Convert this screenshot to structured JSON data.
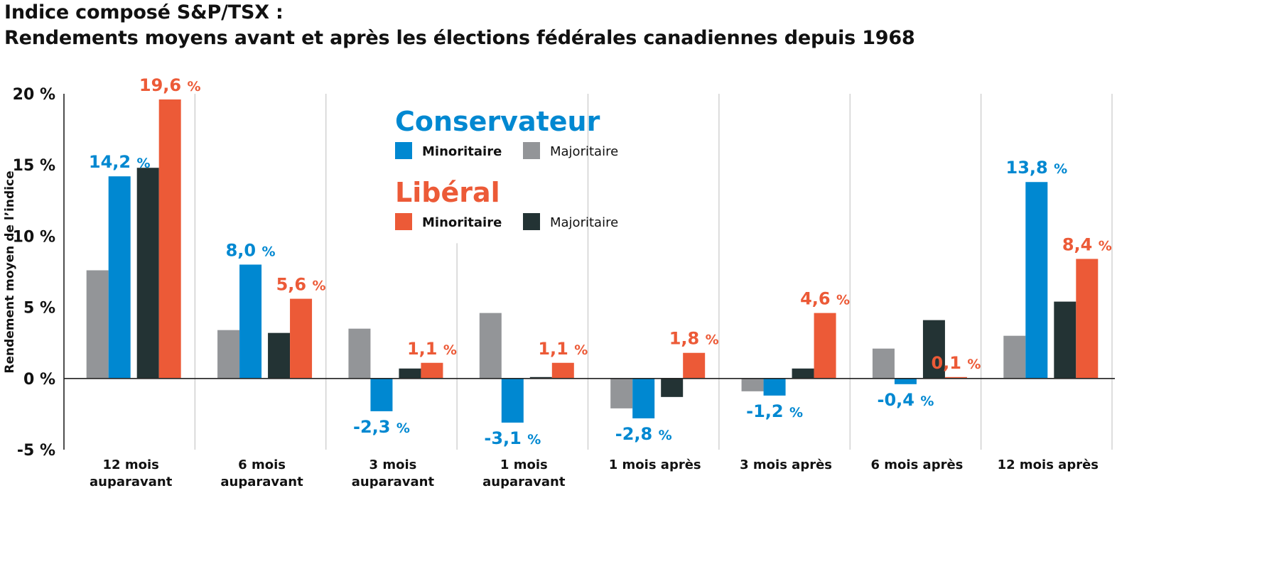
{
  "colors": {
    "conservative_minority": "#0088d1",
    "conservative_majority": "#939598",
    "liberal_minority": "#ec5a37",
    "liberal_majority": "#233334",
    "conservative_heading": "#0088d1",
    "liberal_heading": "#ec5a37",
    "axis": "#222222",
    "divider": "#c8c8c8"
  },
  "chart_data": {
    "type": "bar",
    "title": "Indice composé S&P/TSX :",
    "subtitle": "Rendements moyens avant et après les élections fédérales canadiennes depuis 1968",
    "xlabel": "",
    "ylabel": "Rendement moyen de l’indice",
    "ylim": [
      -5,
      20
    ],
    "yticks": [
      20,
      15,
      10,
      5,
      0,
      -5
    ],
    "ytick_labels": [
      "20 %",
      "15 %",
      "10 %",
      "5 %",
      "0 %",
      "-5 %"
    ],
    "grid": false,
    "legend_position": "top-center",
    "categories": [
      [
        "12 mois",
        "auparavant"
      ],
      [
        "6 mois",
        "auparavant"
      ],
      [
        "3 mois",
        "auparavant"
      ],
      [
        "1 mois",
        "auparavant"
      ],
      [
        "1 mois après"
      ],
      [
        "3 mois après"
      ],
      [
        "6 mois après"
      ],
      [
        "12 mois après"
      ]
    ],
    "series": [
      {
        "key": "conservative_majority",
        "party": "Conservateur",
        "name": "Majoritaire",
        "values": [
          7.6,
          3.4,
          3.5,
          4.6,
          -2.1,
          -0.9,
          2.1,
          3.0
        ],
        "labeled": false
      },
      {
        "key": "conservative_minority",
        "party": "Conservateur",
        "name": "Minoritaire",
        "values": [
          14.2,
          8.0,
          -2.3,
          -3.1,
          -2.8,
          -1.2,
          -0.4,
          13.8
        ],
        "labeled": true,
        "labels": [
          "14,2 %",
          "8,0 %",
          "-2,3 %",
          "-3,1 %",
          "-2,8 %",
          "-1,2 %",
          "-0,4 %",
          "13,8 %"
        ]
      },
      {
        "key": "liberal_majority",
        "party": "Libéral",
        "name": "Majoritaire",
        "values": [
          14.8,
          3.2,
          0.7,
          0.1,
          -1.3,
          0.7,
          4.1,
          5.4
        ],
        "labeled": false
      },
      {
        "key": "liberal_minority",
        "party": "Libéral",
        "name": "Minoritaire",
        "values": [
          19.6,
          5.6,
          1.1,
          1.1,
          1.8,
          4.6,
          0.1,
          8.4
        ],
        "labeled": true,
        "labels": [
          "19,6 %",
          "5,6 %",
          "1,1 %",
          "1,1 %",
          "1,8 %",
          "4,6 %",
          "0,1 %",
          "8,4 %"
        ]
      }
    ],
    "legend": {
      "groups": [
        {
          "heading": "Conservateur",
          "heading_color_key": "conservative_heading",
          "items": [
            {
              "label": "Minoritaire",
              "color_key": "conservative_minority",
              "bold": true
            },
            {
              "label": "Majoritaire",
              "color_key": "conservative_majority",
              "bold": false
            }
          ]
        },
        {
          "heading": "Libéral",
          "heading_color_key": "liberal_heading",
          "items": [
            {
              "label": "Minoritaire",
              "color_key": "liberal_minority",
              "bold": true
            },
            {
              "label": "Majoritaire",
              "color_key": "liberal_majority",
              "bold": false
            }
          ]
        }
      ]
    }
  }
}
